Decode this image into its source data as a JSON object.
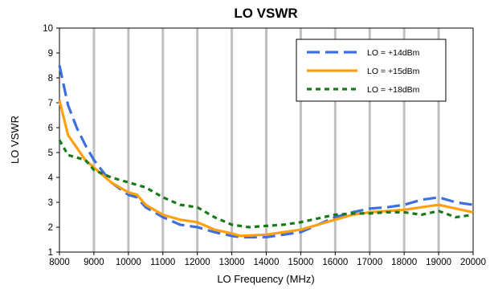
{
  "chart_data": {
    "type": "line",
    "title": "LO VSWR",
    "xlabel": "LO Frequency (MHz)",
    "ylabel": "LO VSWR",
    "xlim": [
      8000,
      20000
    ],
    "ylim": [
      1,
      10
    ],
    "xticks": [
      8000,
      9000,
      10000,
      11000,
      12000,
      13000,
      14000,
      15000,
      16000,
      17000,
      18000,
      19000,
      20000
    ],
    "yticks": [
      1,
      2,
      3,
      4,
      5,
      6,
      7,
      8,
      9,
      10
    ],
    "grid": "vertical",
    "legend_position": "top-right",
    "series": [
      {
        "name": "LO = +14dBm",
        "color": "#3d6fe0",
        "dash": "dashed",
        "x": [
          8000,
          8250,
          8500,
          8750,
          9000,
          9500,
          10000,
          10250,
          10500,
          11000,
          11500,
          12000,
          12500,
          13000,
          13250,
          14000,
          14500,
          15000,
          15500,
          16000,
          16500,
          17000,
          17500,
          18000,
          18500,
          19000,
          19500,
          20000
        ],
        "y": [
          8.5,
          6.9,
          6.0,
          5.3,
          4.7,
          3.8,
          3.3,
          3.2,
          2.8,
          2.4,
          2.1,
          2.0,
          1.8,
          1.65,
          1.6,
          1.6,
          1.7,
          1.8,
          2.1,
          2.4,
          2.6,
          2.75,
          2.8,
          2.9,
          3.1,
          3.2,
          3.0,
          2.9
        ]
      },
      {
        "name": "LO = +15dBm",
        "color": "#ffa010",
        "dash": "solid",
        "x": [
          8000,
          8250,
          8500,
          8750,
          9000,
          9500,
          10000,
          10250,
          10500,
          11000,
          11500,
          12000,
          12500,
          13000,
          13250,
          14000,
          14500,
          15000,
          15500,
          16000,
          16500,
          17000,
          17500,
          18000,
          18500,
          19000,
          19500,
          20000
        ],
        "y": [
          7.1,
          5.7,
          5.2,
          4.7,
          4.4,
          3.8,
          3.4,
          3.3,
          2.9,
          2.5,
          2.3,
          2.2,
          1.9,
          1.75,
          1.65,
          1.7,
          1.8,
          1.9,
          2.1,
          2.3,
          2.5,
          2.6,
          2.65,
          2.7,
          2.8,
          2.9,
          2.75,
          2.6
        ]
      },
      {
        "name": "LO = +18dBm",
        "color": "#1a7a1a",
        "dash": "dotted",
        "x": [
          8000,
          8250,
          8500,
          8750,
          9000,
          9500,
          10000,
          10500,
          11000,
          11500,
          12000,
          12500,
          13000,
          13500,
          14000,
          14500,
          15000,
          15500,
          16000,
          16500,
          17000,
          17500,
          18000,
          18500,
          19000,
          19500,
          20000
        ],
        "y": [
          5.5,
          4.9,
          4.8,
          4.7,
          4.3,
          4.0,
          3.8,
          3.6,
          3.2,
          2.9,
          2.8,
          2.4,
          2.1,
          2.0,
          2.05,
          2.1,
          2.2,
          2.35,
          2.5,
          2.55,
          2.55,
          2.6,
          2.6,
          2.5,
          2.65,
          2.4,
          2.5
        ]
      }
    ]
  }
}
